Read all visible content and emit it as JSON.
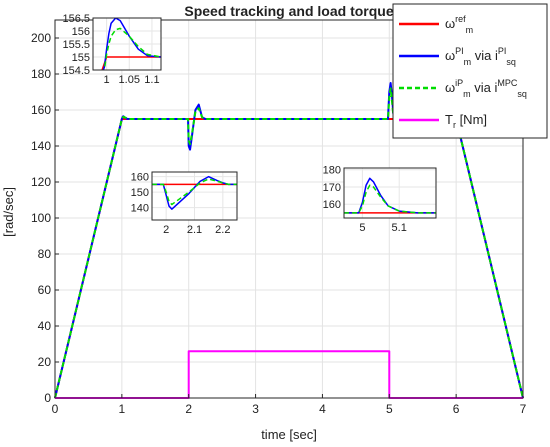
{
  "chart_data": {
    "type": "line",
    "title": "Speed tracking and load torque",
    "xlabel": "time [sec]",
    "ylabel": "[rad/sec]",
    "xlim": [
      0,
      7
    ],
    "ylim": [
      0,
      210
    ],
    "grid": true,
    "xticks": [
      "0",
      "1",
      "2",
      "3",
      "4",
      "5",
      "6",
      "7"
    ],
    "yticks": [
      "0",
      "20",
      "40",
      "60",
      "80",
      "100",
      "120",
      "140",
      "160",
      "180",
      "200"
    ],
    "legend": {
      "placement": "top-right",
      "entries": [
        {
          "base": "ω",
          "sup": "ref",
          "sub": "m",
          "tail_base": "",
          "tail_sup": "",
          "tail_sub": "",
          "color": "#ff0000",
          "dash": false
        },
        {
          "base": "ω",
          "sup": "PI",
          "sub": "m",
          "tail_base": " via i",
          "tail_sup": "PI",
          "tail_sub": "sq",
          "color": "#0000ff",
          "dash": false
        },
        {
          "base": "ω",
          "sup": "iP",
          "sub": "m",
          "tail_base": " via i",
          "tail_sup": "MPC",
          "tail_sub": "sq",
          "color": "#00dd00",
          "dash": true
        },
        {
          "base": "T",
          "sup": "",
          "sub": "r",
          "tail_base": " [Nm]",
          "tail_sup": "",
          "tail_sub": "",
          "color": "#ff00ff",
          "dash": false
        }
      ]
    },
    "series": [
      {
        "color": "#ff0000",
        "dash": false,
        "x": [
          0,
          1,
          6,
          7
        ],
        "y": [
          0,
          155,
          155,
          0
        ]
      },
      {
        "color": "#0000ff",
        "dash": false,
        "x": [
          0,
          1,
          1.01,
          1.02,
          1.03,
          1.05,
          1.08,
          1.12,
          1.95,
          1.99,
          2.0,
          2.02,
          2.05,
          2.1,
          2.15,
          2.2,
          2.25,
          4.98,
          5.0,
          5.02,
          5.04,
          5.06,
          5.1,
          5.15,
          6,
          7
        ],
        "y": [
          0,
          155,
          156.1,
          156.5,
          156.3,
          155.6,
          155.1,
          155,
          155,
          155,
          140,
          138,
          146,
          160,
          163,
          156,
          155,
          155,
          170,
          175,
          168,
          158,
          155,
          155,
          155,
          0
        ]
      },
      {
        "color": "#00dd00",
        "dash": true,
        "x": [
          0,
          1,
          1.01,
          1.02,
          1.03,
          1.05,
          1.08,
          1.12,
          1.95,
          1.99,
          2.0,
          2.02,
          2.05,
          2.1,
          2.15,
          2.2,
          2.25,
          4.98,
          5.0,
          5.02,
          5.04,
          5.06,
          5.1,
          5.15,
          6,
          7
        ],
        "y": [
          0,
          155,
          155.7,
          156.1,
          156.2,
          155.8,
          155.3,
          155,
          155,
          155,
          143,
          141,
          147,
          159,
          161,
          156,
          155,
          155,
          167,
          172,
          165,
          157,
          155,
          155,
          155,
          0
        ]
      },
      {
        "color": "#ff00ff",
        "dash": false,
        "x": [
          0,
          2,
          2,
          5,
          5,
          7
        ],
        "y": [
          0,
          0,
          26,
          26,
          0,
          0
        ]
      }
    ],
    "insets": [
      {
        "xlim": [
          0.97,
          1.12
        ],
        "ylim": [
          154.5,
          156.5
        ],
        "xticks": [
          {
            "v": 1,
            "t": "1"
          },
          {
            "v": 1.05,
            "t": "1.05"
          },
          {
            "v": 1.1,
            "t": "1.1"
          }
        ],
        "yticks": [
          {
            "v": 154.5,
            "t": "154.5"
          },
          {
            "v": 155,
            "t": "155"
          },
          {
            "v": 155.5,
            "t": "155.5"
          },
          {
            "v": 156,
            "t": "156"
          },
          {
            "v": 156.5,
            "t": "156.5"
          }
        ],
        "series": [
          {
            "color": "#ff0000",
            "dash": false,
            "x": [
              0.97,
              1.0,
              1.12
            ],
            "y": [
              153.5,
              155,
              155
            ]
          },
          {
            "color": "#0000ff",
            "dash": false,
            "x": [
              0.97,
              0.995,
              1.0,
              1.005,
              1.01,
              1.02,
              1.03,
              1.05,
              1.07,
              1.09,
              1.12
            ],
            "y": [
              153.5,
              154.6,
              155.3,
              155.9,
              156.3,
              156.5,
              156.4,
              155.8,
              155.3,
              155.05,
              155
            ]
          },
          {
            "color": "#00dd00",
            "dash": true,
            "x": [
              0.97,
              0.995,
              1.0,
              1.005,
              1.01,
              1.02,
              1.03,
              1.05,
              1.07,
              1.09,
              1.12
            ],
            "y": [
              153.5,
              154.5,
              155.1,
              155.5,
              155.8,
              156.05,
              156.1,
              155.8,
              155.4,
              155.1,
              155
            ]
          }
        ]
      },
      {
        "xlim": [
          1.95,
          2.25
        ],
        "ylim": [
          132,
          163
        ],
        "xticks": [
          {
            "v": 2,
            "t": "2"
          },
          {
            "v": 2.1,
            "t": "2.1"
          },
          {
            "v": 2.2,
            "t": "2.2"
          }
        ],
        "yticks": [
          {
            "v": 140,
            "t": "140"
          },
          {
            "v": 150,
            "t": "150"
          },
          {
            "v": 160,
            "t": "160"
          }
        ],
        "series": [
          {
            "color": "#ff0000",
            "dash": false,
            "x": [
              1.95,
              2.25
            ],
            "y": [
              155,
              155
            ]
          },
          {
            "color": "#0000ff",
            "dash": false,
            "x": [
              1.95,
              1.99,
              2.0,
              2.01,
              2.02,
              2.05,
              2.08,
              2.12,
              2.15,
              2.18,
              2.2,
              2.22,
              2.25
            ],
            "y": [
              155,
              155,
              148,
              141,
              139,
              144,
              149,
              157,
              160,
              157.5,
              156,
              155,
              155
            ]
          },
          {
            "color": "#00dd00",
            "dash": true,
            "x": [
              1.95,
              1.99,
              2.0,
              2.01,
              2.02,
              2.05,
              2.08,
              2.12,
              2.15,
              2.18,
              2.2,
              2.22,
              2.25
            ],
            "y": [
              155,
              155,
              150,
              144,
              142,
              146,
              150,
              156,
              158.5,
              157,
              156,
              155,
              155
            ]
          }
        ]
      },
      {
        "xlim": [
          4.95,
          5.2
        ],
        "ylim": [
          152,
          181
        ],
        "xticks": [
          {
            "v": 5,
            "t": "5"
          },
          {
            "v": 5.1,
            "t": "5.1"
          }
        ],
        "yticks": [
          {
            "v": 160,
            "t": "160"
          },
          {
            "v": 170,
            "t": "170"
          },
          {
            "v": 180,
            "t": "180"
          }
        ],
        "series": [
          {
            "color": "#ff0000",
            "dash": false,
            "x": [
              4.95,
              5.2
            ],
            "y": [
              155,
              155
            ]
          },
          {
            "color": "#0000ff",
            "dash": false,
            "x": [
              4.95,
              4.99,
              5.0,
              5.01,
              5.02,
              5.03,
              5.05,
              5.07,
              5.1,
              5.15,
              5.2
            ],
            "y": [
              155,
              155,
              161,
              171,
              175,
              173,
              165,
              159,
              156,
              155,
              155
            ]
          },
          {
            "color": "#00dd00",
            "dash": true,
            "x": [
              4.95,
              4.99,
              5.0,
              5.01,
              5.02,
              5.03,
              5.05,
              5.07,
              5.1,
              5.15,
              5.2
            ],
            "y": [
              155,
              155,
              159,
              167,
              171,
              170,
              164,
              159,
              156,
              155,
              155
            ]
          }
        ]
      }
    ]
  }
}
